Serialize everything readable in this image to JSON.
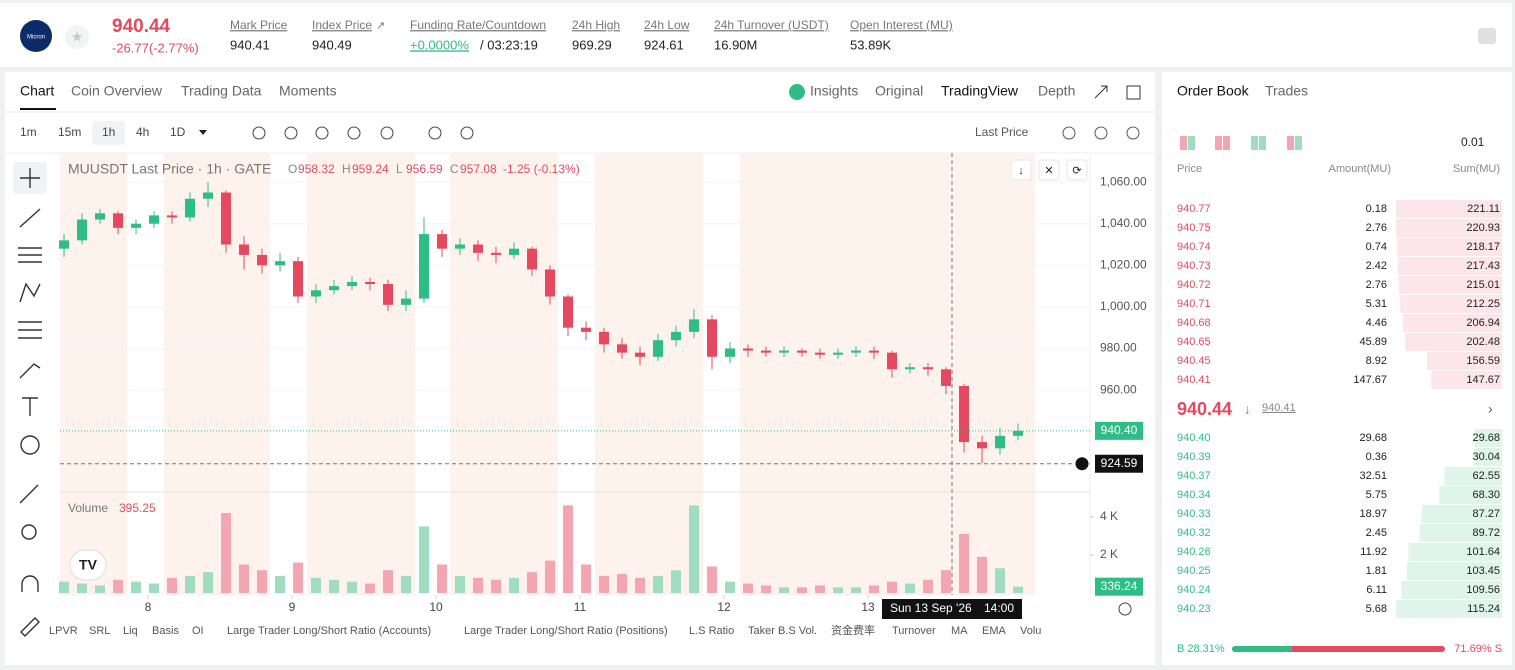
{
  "header": {
    "logo": "Micron",
    "price": "940.44",
    "change": "-26.77(-2.77%)",
    "stats": [
      {
        "label": "Mark Price",
        "value": "940.41"
      },
      {
        "label": "Index Price",
        "value": "940.49"
      },
      {
        "label": "Funding Rate/Countdown",
        "value": "+0.0000%",
        "extra": "/ 03:23:19"
      },
      {
        "label": "24h High",
        "value": "969.29"
      },
      {
        "label": "24h Low",
        "value": "924.61"
      },
      {
        "label": "24h Turnover (USDT)",
        "value": "16.90M"
      },
      {
        "label": "Open Interest (MU)",
        "value": "53.89K"
      }
    ]
  },
  "tabs": {
    "left": [
      "Chart",
      "Coin Overview",
      "Trading Data",
      "Moments"
    ],
    "right": [
      "Insights",
      "Original",
      "TradingView",
      "Depth"
    ]
  },
  "toolbar": {
    "intervals": [
      "1m",
      "15m",
      "1h",
      "4h",
      "1D"
    ],
    "price_type": "Last Price"
  },
  "chart_data": {
    "type": "candlestick",
    "symbol": "MUUSDT Last Price · 1h · GATE",
    "ohlc": [
      {
        "key": "O",
        "value": "958.32"
      },
      {
        "key": "H",
        "value": "959.24"
      },
      {
        "key": "L",
        "value": "956.59"
      },
      {
        "key": "C",
        "value": "957.08"
      }
    ],
    "change": "-1.25 (-0.13%)",
    "volume_label": "Volume",
    "volume_value": "395.25",
    "up_color": "#2ebd85",
    "down_color": "#e5495f",
    "volume_up_color": "#9fdcc0",
    "volume_down_color": "#f3a5b2",
    "x": [
      -14,
      -11,
      -8,
      -5,
      -2,
      1,
      4,
      7,
      10,
      13,
      16,
      19,
      22,
      25,
      28,
      31,
      34,
      37,
      40,
      43,
      46,
      49,
      52,
      55,
      58,
      61,
      64,
      67,
      70,
      73,
      76,
      79,
      82,
      85,
      88,
      91,
      94,
      97,
      100,
      103,
      106,
      109,
      112,
      115,
      118,
      121,
      124,
      127,
      130,
      133,
      136,
      139,
      142,
      145
    ],
    "open": [
      1028,
      1032,
      1042,
      1045,
      1038,
      1040,
      1044,
      1043,
      1052,
      1055,
      1030,
      1025,
      1020,
      1022,
      1005,
      1008,
      1010,
      1012,
      1011,
      1001,
      1004,
      1035,
      1028,
      1030,
      1026,
      1025,
      1028,
      1018,
      1005,
      990,
      988,
      982,
      978,
      976,
      984,
      988,
      994,
      976,
      980,
      979,
      978,
      979,
      978,
      977,
      978,
      979,
      978,
      970,
      971,
      970,
      962,
      935,
      932,
      938
    ],
    "high": [
      1035,
      1045,
      1047,
      1046,
      1042,
      1046,
      1046,
      1055,
      1060,
      1056,
      1034,
      1028,
      1026,
      1024,
      1011,
      1013,
      1015,
      1014,
      1013,
      1008,
      1043,
      1037,
      1033,
      1032,
      1029,
      1031,
      1029,
      1020,
      1006,
      993,
      990,
      985,
      981,
      987,
      991,
      999,
      996,
      983,
      982,
      981,
      981,
      980,
      980,
      980,
      981,
      981,
      979,
      973,
      973,
      971,
      963,
      938,
      942,
      944
    ],
    "low": [
      1024,
      1030,
      1040,
      1035,
      1035,
      1038,
      1040,
      1041,
      1048,
      1026,
      1018,
      1016,
      1017,
      1002,
      1002,
      1006,
      1008,
      1008,
      998,
      998,
      1002,
      1024,
      1025,
      1022,
      1021,
      1023,
      1015,
      1001,
      986,
      984,
      978,
      975,
      972,
      974,
      981,
      985,
      970,
      973,
      976,
      976,
      976,
      976,
      975,
      975,
      976,
      975,
      966,
      968,
      967,
      958,
      930,
      925,
      929,
      936
    ],
    "close": [
      1032,
      1042,
      1045,
      1038,
      1040,
      1044,
      1043,
      1052,
      1055,
      1030,
      1025,
      1020,
      1022,
      1005,
      1008,
      1010,
      1012,
      1011,
      1001,
      1004,
      1035,
      1028,
      1030,
      1026,
      1025,
      1028,
      1018,
      1005,
      990,
      988,
      982,
      978,
      976,
      984,
      988,
      994,
      976,
      980,
      979,
      978,
      979,
      978,
      977,
      978,
      979,
      978,
      970,
      971,
      970,
      962,
      935,
      932,
      938,
      940.4
    ],
    "volume": [
      600,
      500,
      400,
      700,
      600,
      500,
      800,
      900,
      1100,
      4200,
      1500,
      1200,
      900,
      1600,
      800,
      700,
      600,
      500,
      1200,
      900,
      3500,
      1500,
      900,
      800,
      700,
      800,
      1100,
      1700,
      4600,
      1500,
      900,
      1000,
      800,
      900,
      1200,
      4600,
      1400,
      600,
      500,
      400,
      300,
      300,
      400,
      300,
      300,
      400,
      600,
      500,
      700,
      1200,
      3100,
      1900,
      1300,
      336.24
    ],
    "xlim": [
      -14.67,
      157
    ],
    "ylim": [
      911,
      1074
    ],
    "volume_ylim": [
      -100,
      5300
    ],
    "xticks": [
      {
        "value": 0,
        "label": "8"
      },
      {
        "value": 24,
        "label": "9"
      },
      {
        "value": 48,
        "label": "10"
      },
      {
        "value": 72,
        "label": "11"
      },
      {
        "value": 96,
        "label": "12"
      },
      {
        "value": 120,
        "label": "13"
      }
    ],
    "yticks": [
      {
        "value": 1060,
        "label": "1,060.00"
      },
      {
        "value": 1040,
        "label": "1,040.00"
      },
      {
        "value": 1020,
        "label": "1,020.00"
      },
      {
        "value": 1000,
        "label": "1,000.00"
      },
      {
        "value": 980,
        "label": "980.00"
      },
      {
        "value": 960,
        "label": "960.00"
      }
    ],
    "volume_yticks": [
      {
        "value": 4000,
        "label": "4 K"
      },
      {
        "value": 2000,
        "label": "2 K"
      }
    ],
    "last_price": {
      "value": 940.4,
      "label": "940.40"
    },
    "crosshair": {
      "x": 134,
      "date_label": "Sun 13 Sep '26",
      "time_label": "14:00",
      "y": 924.59
    }
  },
  "indicators": [
    "LPVR",
    "SRL",
    "Liq",
    "Basis",
    "OI",
    "Large Trader Long/Short Ratio (Accounts)",
    "Large Trader Long/Short Ratio (Positions)",
    "L.S Ratio",
    "Taker B.S Vol.",
    "资金费率",
    "Turnover",
    "MA",
    "EMA",
    "Volu"
  ],
  "order_book": {
    "tabs": [
      "Order Book",
      "Trades"
    ],
    "precision": "0.01",
    "columns": [
      "Price",
      "Amount(MU)",
      "Sum(MU)"
    ],
    "asks": [
      [
        "940.77",
        "0.18",
        "221.11"
      ],
      [
        "940.75",
        "2.76",
        "220.93"
      ],
      [
        "940.74",
        "0.74",
        "218.17"
      ],
      [
        "940.73",
        "2.42",
        "217.43"
      ],
      [
        "940.72",
        "2.76",
        "215.01"
      ],
      [
        "940.71",
        "5.31",
        "212.25"
      ],
      [
        "940.68",
        "4.46",
        "206.94"
      ],
      [
        "940.65",
        "45.89",
        "202.48"
      ],
      [
        "940.45",
        "8.92",
        "156.59"
      ],
      [
        "940.41",
        "147.67",
        "147.67"
      ]
    ],
    "mid_price": "940.44",
    "mark_price": "940.41",
    "bids": [
      [
        "940.40",
        "29.68",
        "29.68"
      ],
      [
        "940.39",
        "0.36",
        "30.04"
      ],
      [
        "940.37",
        "32.51",
        "62.55"
      ],
      [
        "940.34",
        "5.75",
        "68.30"
      ],
      [
        "940.33",
        "18.97",
        "87.27"
      ],
      [
        "940.32",
        "2.45",
        "89.72"
      ],
      [
        "940.26",
        "11.92",
        "101.64"
      ],
      [
        "940.25",
        "1.81",
        "103.45"
      ],
      [
        "940.24",
        "6.11",
        "109.56"
      ],
      [
        "940.23",
        "5.68",
        "115.24"
      ]
    ],
    "buy_ratio": {
      "value": 28.31,
      "label": "B 28.31%"
    },
    "sell_ratio": {
      "value": 71.69,
      "label": "71.69% S"
    }
  }
}
